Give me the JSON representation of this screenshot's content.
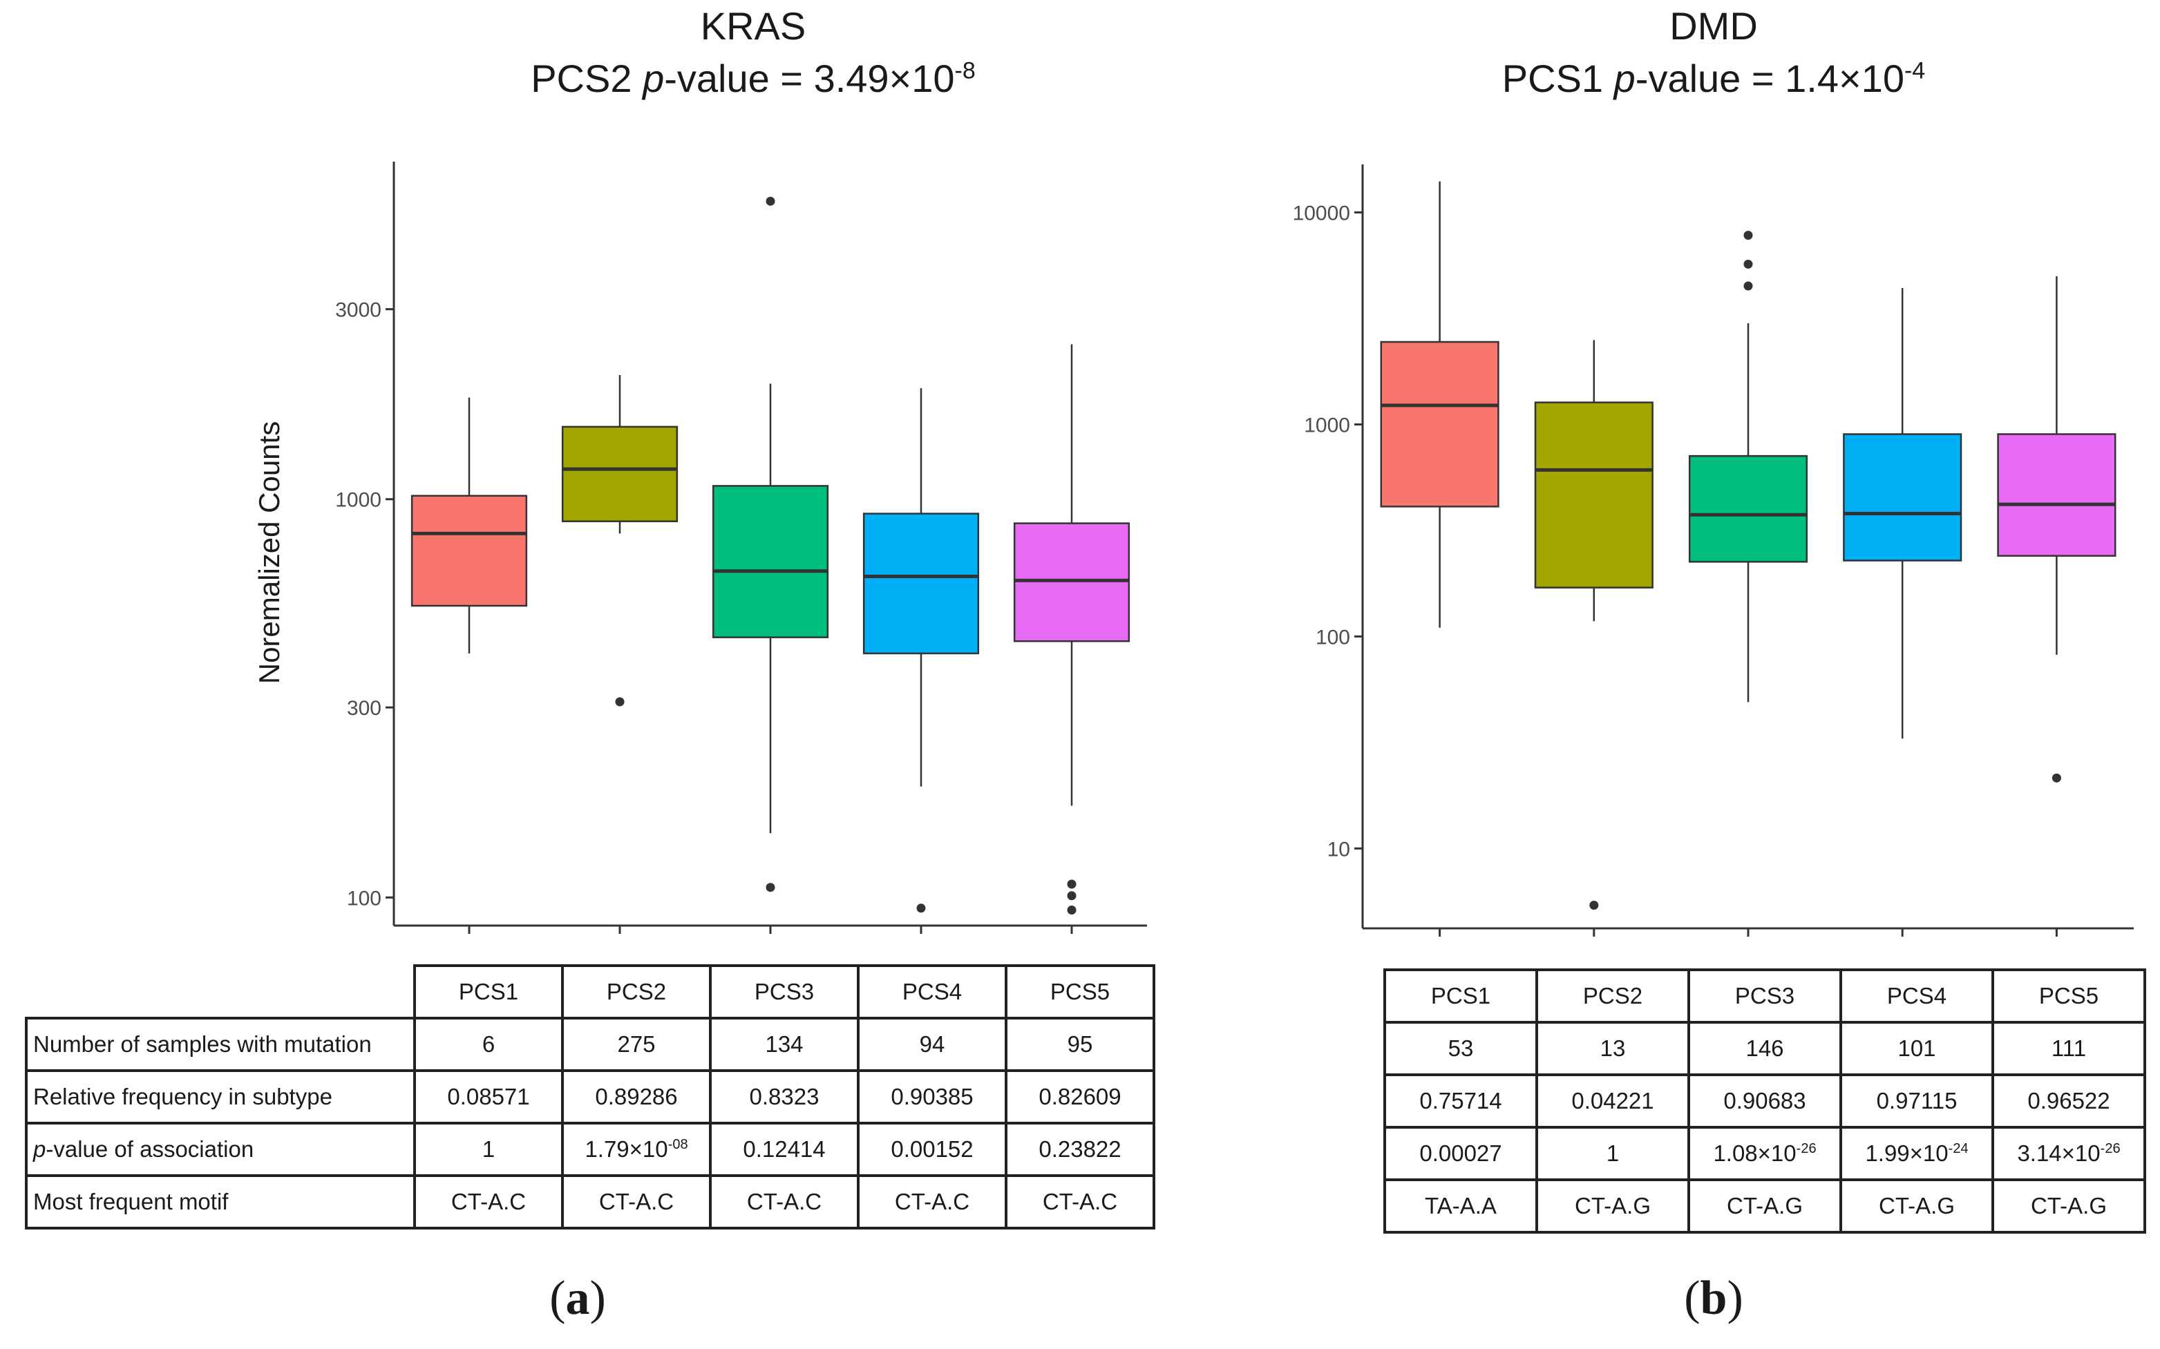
{
  "figure": {
    "panel_a": {
      "title_line1": "KRAS",
      "title_prefix": "PCS2 ",
      "title_italic": "p",
      "title_mid": "-value =  3.49×10",
      "title_exp": "-8",
      "panel_label_open": "(",
      "panel_label_letter": "a",
      "panel_label_close": ")",
      "table": {
        "headers": [
          "PCS1",
          "PCS2",
          "PCS3",
          "PCS4",
          "PCS5"
        ],
        "rows": [
          {
            "label": "Number of samples with mutation",
            "label_italic": "",
            "label_rest": "",
            "values": [
              "6",
              "275",
              "134",
              "94",
              "95"
            ],
            "exps": [
              "",
              "",
              "",
              "",
              ""
            ]
          },
          {
            "label": "Relative frequency in subtype",
            "label_italic": "",
            "label_rest": "",
            "values": [
              "0.08571",
              "0.89286",
              "0.8323",
              "0.90385",
              "0.82609"
            ],
            "exps": [
              "",
              "",
              "",
              "",
              ""
            ]
          },
          {
            "label": "",
            "label_italic": "p",
            "label_rest": "-value of association",
            "values": [
              "1",
              "1.79×10",
              "0.12414",
              "0.00152",
              "0.23822"
            ],
            "exps": [
              "",
              "-08",
              "",
              "",
              ""
            ]
          },
          {
            "label": "Most frequent motif",
            "label_italic": "",
            "label_rest": "",
            "values": [
              "CT-A.C",
              "CT-A.C",
              "CT-A.C",
              "CT-A.C",
              "CT-A.C"
            ],
            "exps": [
              "",
              "",
              "",
              "",
              ""
            ]
          }
        ]
      }
    },
    "panel_b": {
      "title_line1": "DMD",
      "title_prefix": "PCS1 ",
      "title_italic": "p",
      "title_mid": "-value = 1.4×10",
      "title_exp": "-4",
      "panel_label_open": "(",
      "panel_label_letter": "b",
      "panel_label_close": ")",
      "table": {
        "headers": [
          "PCS1",
          "PCS2",
          "PCS3",
          "PCS4",
          "PCS5"
        ],
        "rows": [
          {
            "values": [
              "53",
              "13",
              "146",
              "101",
              "111"
            ],
            "exps": [
              "",
              "",
              "",
              "",
              ""
            ]
          },
          {
            "values": [
              "0.75714",
              "0.04221",
              "0.90683",
              "0.97115",
              "0.96522"
            ],
            "exps": [
              "",
              "",
              "",
              "",
              ""
            ]
          },
          {
            "values": [
              "0.00027",
              "1",
              "1.08×10",
              "1.99×10",
              "3.14×10"
            ],
            "exps": [
              "",
              "",
              "-26",
              "-24",
              "-26"
            ]
          },
          {
            "values": [
              "TA-A.A",
              "CT-A.G",
              "CT-A.G",
              "CT-A.G",
              "CT-A.G"
            ],
            "exps": [
              "",
              "",
              "",
              "",
              ""
            ]
          }
        ]
      }
    }
  },
  "chart_data": [
    {
      "type": "boxplot",
      "title": "KRAS",
      "subtitle": "PCS2 p-value =  3.49×10-8",
      "xlabel": "",
      "ylabel": "Noremalized Counts",
      "yscale": "log",
      "ylim": [
        85,
        6500
      ],
      "yticks": [
        100,
        300,
        1000,
        3000
      ],
      "categories": [
        "PCS1",
        "PCS2",
        "PCS3",
        "PCS4",
        "PCS5"
      ],
      "colors": [
        "#F8766D",
        "#A3A500",
        "#00BF7D",
        "#00B0F6",
        "#E76BF3"
      ],
      "boxes": [
        {
          "whisker_low": 410,
          "q1": 540,
          "median": 820,
          "q3": 1020,
          "whisker_high": 1800,
          "outliers": []
        },
        {
          "whisker_low": 820,
          "q1": 880,
          "median": 1190,
          "q3": 1520,
          "whisker_high": 2050,
          "outliers": [
            310
          ]
        },
        {
          "whisker_low": 145,
          "q1": 450,
          "median": 660,
          "q3": 1080,
          "whisker_high": 1950,
          "outliers": [
            5600,
            106
          ]
        },
        {
          "whisker_low": 190,
          "q1": 410,
          "median": 640,
          "q3": 920,
          "whisker_high": 1900,
          "outliers": [
            94
          ]
        },
        {
          "whisker_low": 170,
          "q1": 440,
          "median": 625,
          "q3": 870,
          "whisker_high": 2450,
          "outliers": [
            108,
            101,
            93
          ]
        }
      ],
      "grid": false
    },
    {
      "type": "boxplot",
      "title": "DMD",
      "subtitle": "PCS1 p-value = 1.4×10-4",
      "xlabel": "",
      "ylabel": "",
      "yscale": "log",
      "ylim": [
        4.2,
        14500
      ],
      "yticks": [
        10,
        100,
        1000,
        10000
      ],
      "categories": [
        "PCS1",
        "PCS2",
        "PCS3",
        "PCS4",
        "PCS5"
      ],
      "colors": [
        "#F8766D",
        "#A3A500",
        "#00BF7D",
        "#00B0F6",
        "#E76BF3"
      ],
      "boxes": [
        {
          "whisker_low": 110,
          "q1": 410,
          "median": 1230,
          "q3": 2450,
          "whisker_high": 14000,
          "outliers": []
        },
        {
          "whisker_low": 118,
          "q1": 170,
          "median": 610,
          "q3": 1270,
          "whisker_high": 2500,
          "outliers": [
            5.4
          ]
        },
        {
          "whisker_low": 49,
          "q1": 225,
          "median": 375,
          "q3": 710,
          "whisker_high": 3000,
          "outliers": [
            7800,
            5700,
            4500
          ]
        },
        {
          "whisker_low": 33,
          "q1": 228,
          "median": 380,
          "q3": 900,
          "whisker_high": 4400,
          "outliers": []
        },
        {
          "whisker_low": 82,
          "q1": 240,
          "median": 420,
          "q3": 900,
          "whisker_high": 5000,
          "outliers": [
            21.5
          ]
        }
      ],
      "grid": false
    }
  ]
}
